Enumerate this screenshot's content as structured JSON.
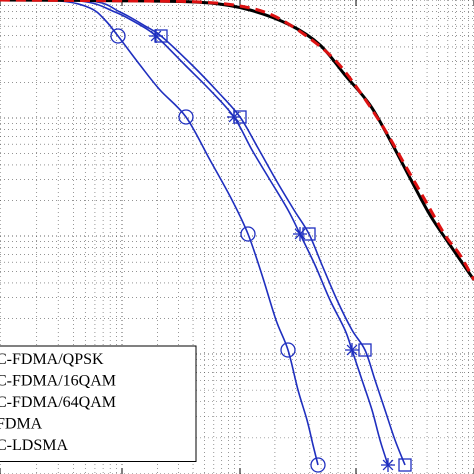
{
  "chart_data": {
    "type": "line",
    "title": "",
    "xlabel": "",
    "ylabel": "",
    "grid": true,
    "grid_style": "dotted",
    "y_scale": "log",
    "legend": {
      "placement": "bottom-left",
      "entries": [
        {
          "label": "C-FDMA/QPSK",
          "color": "#1f2fbf",
          "style": "solid",
          "marker": "circle"
        },
        {
          "label": "C-FDMA/16QAM",
          "color": "#1f2fbf",
          "style": "solid",
          "marker": "star"
        },
        {
          "label": "C-FDMA/64QAM",
          "color": "#1f2fbf",
          "style": "solid",
          "marker": "square"
        },
        {
          "label": "FDMA",
          "color": "#000000",
          "style": "solid",
          "marker": "none"
        },
        {
          "label": "C-LDSMA",
          "color": "#dd1111",
          "style": "dashed",
          "marker": "none"
        }
      ]
    },
    "series": [
      {
        "name": "C-FDMA/QPSK",
        "color": "#1f2fbf",
        "style": "solid",
        "marker": "circle",
        "points": [
          [
            0,
            0
          ],
          [
            60,
            1
          ],
          [
            90,
            8
          ],
          [
            105,
            20
          ],
          [
            118,
            36
          ],
          [
            140,
            65
          ],
          [
            160,
            90
          ],
          [
            186,
            117
          ],
          [
            210,
            160
          ],
          [
            232,
            200
          ],
          [
            248,
            234
          ],
          [
            262,
            275
          ],
          [
            276,
            320
          ],
          [
            288,
            350
          ],
          [
            298,
            390
          ],
          [
            307,
            420
          ],
          [
            313,
            445
          ],
          [
            318,
            465
          ]
        ],
        "marker_points": [
          [
            118,
            36
          ],
          [
            186,
            117
          ],
          [
            248,
            234
          ],
          [
            288,
            350
          ],
          [
            318,
            465
          ]
        ]
      },
      {
        "name": "C-FDMA/16QAM",
        "color": "#1f2fbf",
        "style": "solid",
        "marker": "star",
        "points": [
          [
            0,
            0
          ],
          [
            80,
            1
          ],
          [
            115,
            12
          ],
          [
            140,
            25
          ],
          [
            156,
            36
          ],
          [
            185,
            65
          ],
          [
            210,
            90
          ],
          [
            234,
            117
          ],
          [
            252,
            150
          ],
          [
            270,
            180
          ],
          [
            288,
            210
          ],
          [
            300,
            234
          ],
          [
            315,
            265
          ],
          [
            330,
            300
          ],
          [
            345,
            330
          ],
          [
            352,
            350
          ],
          [
            362,
            380
          ],
          [
            372,
            410
          ],
          [
            380,
            440
          ],
          [
            388,
            465
          ]
        ],
        "marker_points": [
          [
            156,
            36
          ],
          [
            234,
            117
          ],
          [
            300,
            234
          ],
          [
            352,
            350
          ],
          [
            388,
            465
          ]
        ]
      },
      {
        "name": "C-FDMA/64QAM",
        "color": "#1f2fbf",
        "style": "solid",
        "marker": "square",
        "points": [
          [
            0,
            0
          ],
          [
            90,
            1
          ],
          [
            120,
            12
          ],
          [
            145,
            26
          ],
          [
            161,
            36
          ],
          [
            192,
            65
          ],
          [
            218,
            92
          ],
          [
            240,
            117
          ],
          [
            258,
            148
          ],
          [
            276,
            180
          ],
          [
            294,
            210
          ],
          [
            309,
            234
          ],
          [
            322,
            265
          ],
          [
            337,
            300
          ],
          [
            352,
            330
          ],
          [
            365,
            350
          ],
          [
            375,
            380
          ],
          [
            385,
            410
          ],
          [
            395,
            440
          ],
          [
            405,
            465
          ]
        ],
        "marker_points": [
          [
            161,
            36
          ],
          [
            240,
            117
          ],
          [
            309,
            234
          ],
          [
            365,
            350
          ],
          [
            405,
            465
          ]
        ]
      },
      {
        "name": "FDMA",
        "color": "#000000",
        "style": "solid",
        "marker": "none",
        "points": [
          [
            0,
            0
          ],
          [
            150,
            1
          ],
          [
            210,
            3
          ],
          [
            250,
            10
          ],
          [
            290,
            25
          ],
          [
            320,
            45
          ],
          [
            345,
            75
          ],
          [
            370,
            105
          ],
          [
            390,
            140
          ],
          [
            410,
            178
          ],
          [
            430,
            215
          ],
          [
            450,
            245
          ],
          [
            474,
            280
          ]
        ]
      },
      {
        "name": "C-LDSMA",
        "color": "#dd1111",
        "style": "dashed",
        "marker": "none",
        "points": [
          [
            0,
            0
          ],
          [
            140,
            1
          ],
          [
            200,
            2
          ],
          [
            240,
            6
          ],
          [
            272,
            15
          ],
          [
            305,
            35
          ],
          [
            335,
            60
          ],
          [
            360,
            92
          ],
          [
            385,
            130
          ],
          [
            405,
            165
          ],
          [
            425,
            200
          ],
          [
            445,
            235
          ],
          [
            460,
            255
          ],
          [
            474,
            280
          ]
        ]
      }
    ]
  }
}
